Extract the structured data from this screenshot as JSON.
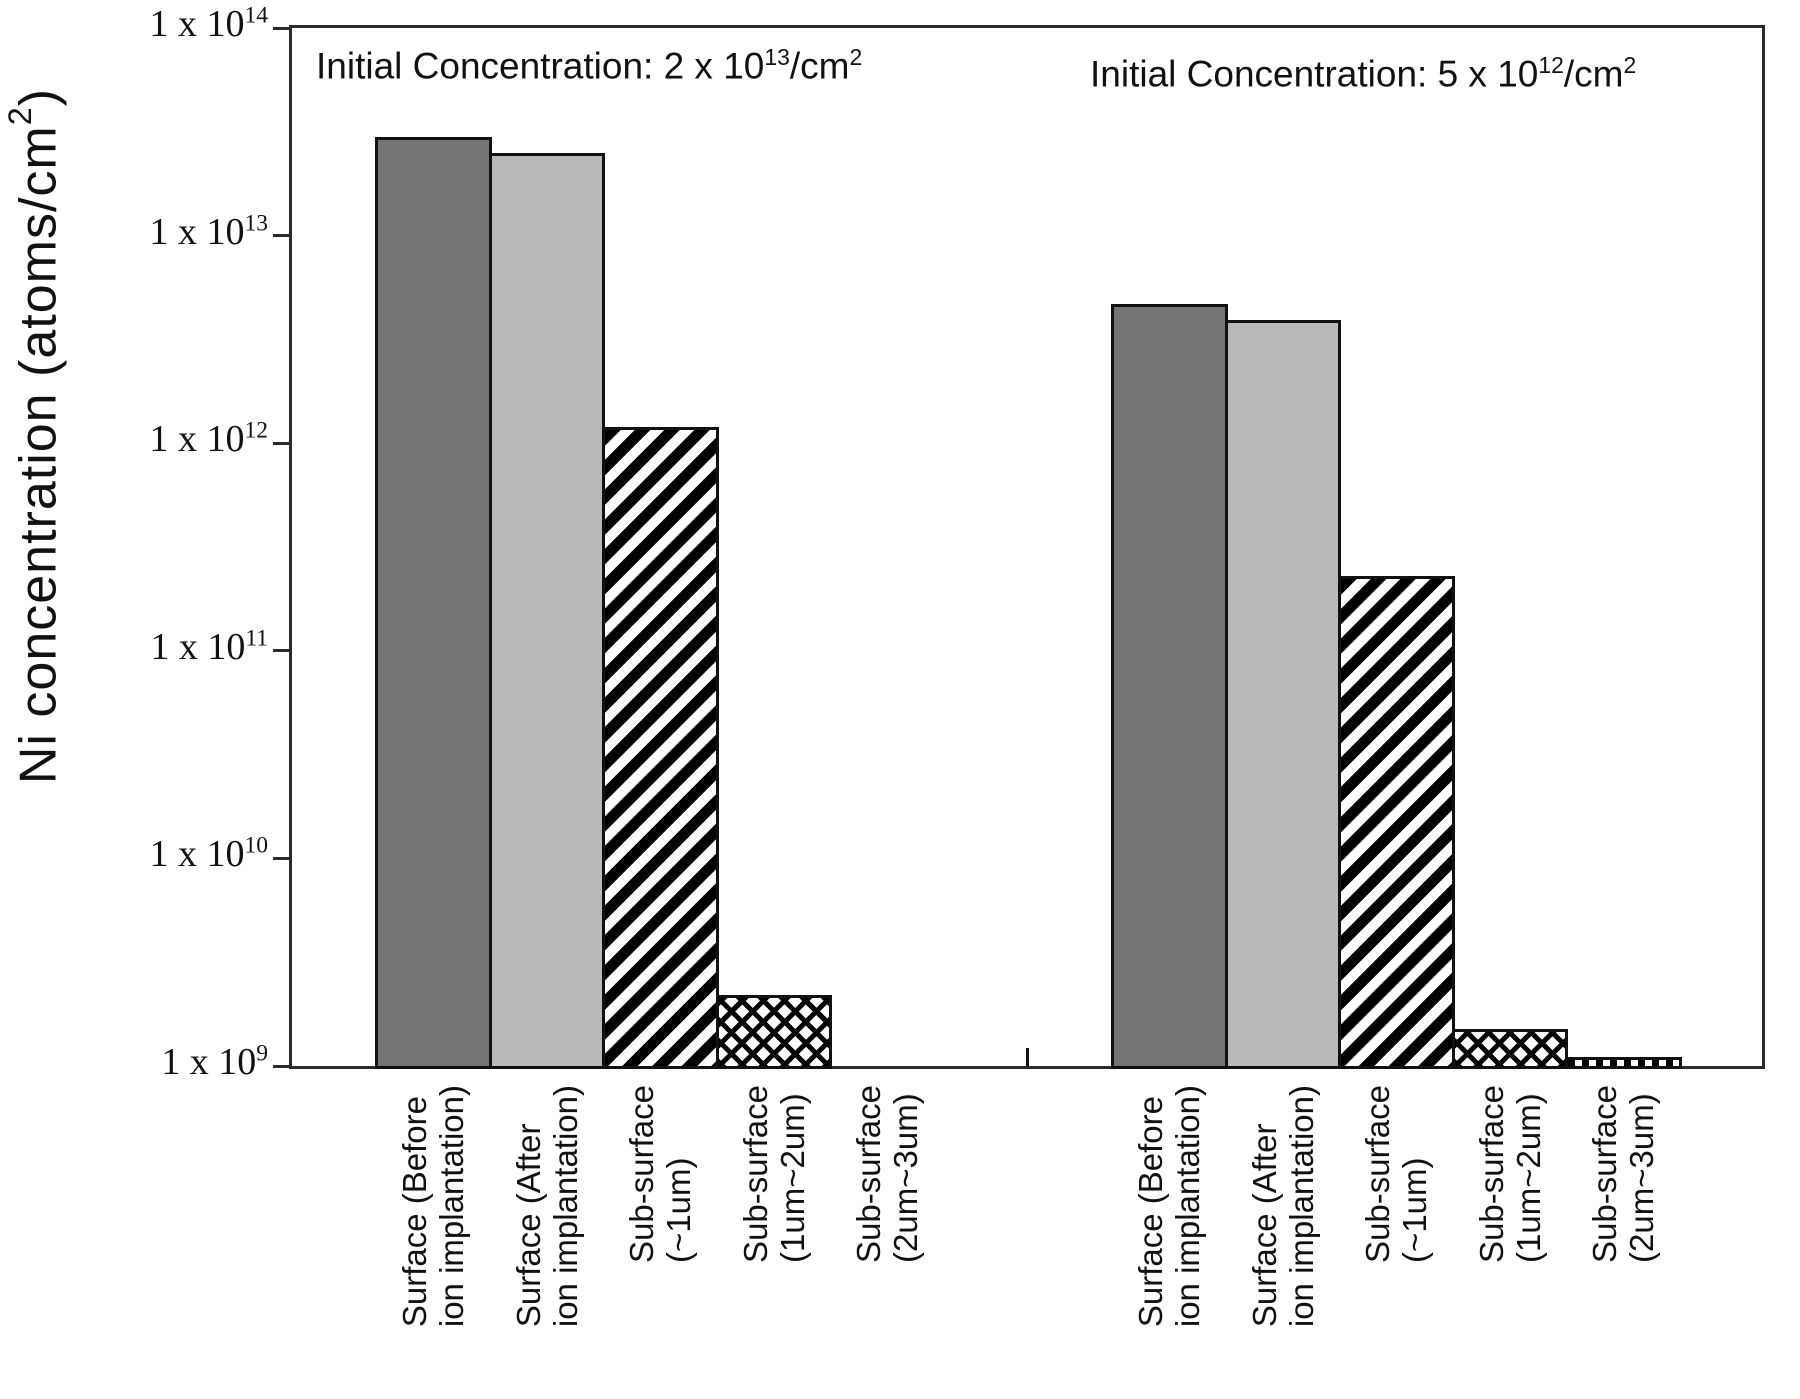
{
  "chart_data": {
    "type": "bar",
    "yscale": "log",
    "ylim": [
      1000000000.0,
      100000000000000.0
    ],
    "ylabel": "Ni concentration (atoms/cm^2)",
    "ylabel_parts": [
      {
        "t": "Ni concentration (atoms/cm"
      },
      {
        "sup": "2"
      },
      {
        "t": ")"
      }
    ],
    "yticks": [
      {
        "value": 100000000000000.0,
        "base": "1 x 10",
        "exp": "14"
      },
      {
        "value": 10000000000000.0,
        "base": "1 x 10",
        "exp": "13"
      },
      {
        "value": 1000000000000.0,
        "base": "1 x 10",
        "exp": "12"
      },
      {
        "value": 100000000000.0,
        "base": "1 x 10",
        "exp": "11"
      },
      {
        "value": 10000000000.0,
        "base": "1 x 10",
        "exp": "10"
      },
      {
        "value": 1000000000.0,
        "base": "1 x 10",
        "exp": "9"
      }
    ],
    "categories": [
      [
        "Surface (Before",
        "ion implantation)"
      ],
      [
        "Surface (After",
        "ion implantation)"
      ],
      [
        "Sub-surface",
        "(~1um)"
      ],
      [
        "Sub-surface",
        "(1um~2um)"
      ],
      [
        "Sub-surface",
        "(2um~3um)"
      ]
    ],
    "bar_styles": [
      "solid-dark-gray",
      "solid-light-gray",
      "diagonal-hatch",
      "cross-hatch",
      "vertical-stripes"
    ],
    "colors": {
      "dark_gray": "#757575",
      "light_gray": "#b9b9b9",
      "hatch_ink": "#000000",
      "axis": "#2b2b2b"
    },
    "groups": [
      {
        "annotation": "Initial Concentration: 2 x 10^13/cm^2",
        "annotation_parts": [
          {
            "t": "Initial Concentration: 2 x 10"
          },
          {
            "sup": "13"
          },
          {
            "t": "/cm"
          },
          {
            "sup": "2"
          }
        ],
        "values": [
          30000000000000.0,
          25000000000000.0,
          1200000000000.0,
          2200000000.0,
          null
        ]
      },
      {
        "annotation": "Initial Concentration: 5 x 10^12/cm^2",
        "annotation_parts": [
          {
            "t": "Initial Concentration: 5 x 10"
          },
          {
            "sup": "12"
          },
          {
            "t": "/cm"
          },
          {
            "sup": "2"
          }
        ],
        "values": [
          4700000000000.0,
          3900000000000.0,
          230000000000.0,
          1500000000.0,
          1100000000.0
        ]
      }
    ]
  }
}
